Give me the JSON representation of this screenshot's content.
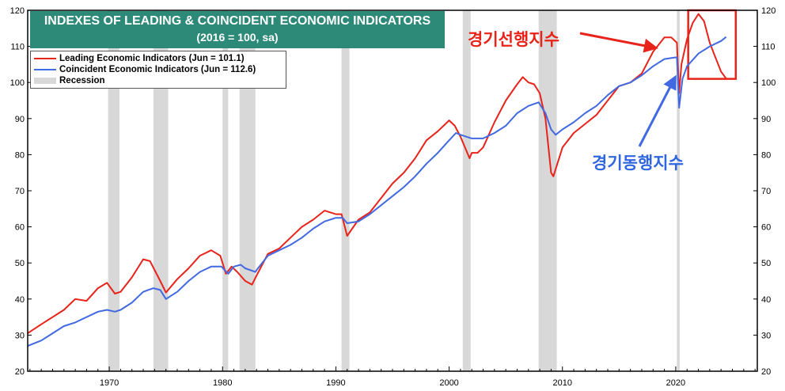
{
  "title": {
    "line1": "INDEXES OF LEADING & COINCIDENT ECONOMIC INDICATORS",
    "line2": "(2016 = 100, sa)"
  },
  "legend": {
    "leading": "Leading Economic Indicators (Jun = 101.1)",
    "coincident": "Coincident Economic Indicators (Jun = 112.6)",
    "recession": "Recession"
  },
  "annotations": {
    "leading_korean": "경기선행지수",
    "coincident_korean": "경기동행지수"
  },
  "colors": {
    "leading": "#e8231a",
    "coincident": "#4169e1",
    "recession": "#d8d8d8",
    "title_bg": "#2e8a78",
    "highlight_box": "#e8231a"
  },
  "chart_data": {
    "type": "line",
    "title": "INDEXES OF LEADING & COINCIDENT ECONOMIC INDICATORS (2016 = 100, sa)",
    "xlabel": "",
    "ylabel": "",
    "xlim": [
      1962.8,
      2027.2
    ],
    "ylim": [
      20,
      120
    ],
    "x_ticks": [
      1970,
      1980,
      1990,
      2000,
      2010,
      2020
    ],
    "y_ticks": [
      20,
      30,
      40,
      50,
      60,
      70,
      80,
      90,
      100,
      110,
      120
    ],
    "recessions": [
      [
        1969.9,
        1970.9
      ],
      [
        1973.9,
        1975.2
      ],
      [
        1980.0,
        1980.5
      ],
      [
        1981.5,
        1982.9
      ],
      [
        1990.5,
        1991.2
      ],
      [
        2001.2,
        2001.9
      ],
      [
        2007.9,
        2009.5
      ],
      [
        2020.1,
        2020.35
      ]
    ],
    "highlight_region": {
      "x": [
        2021.1,
        2025.3
      ],
      "y": [
        101,
        120
      ]
    },
    "series": [
      {
        "name": "Leading Economic Indicators (Jun = 101.1)",
        "color": "#e8231a",
        "points": [
          [
            1962.8,
            30.5
          ],
          [
            1964,
            33
          ],
          [
            1966,
            37
          ],
          [
            1967,
            40
          ],
          [
            1968,
            39.5
          ],
          [
            1969,
            43
          ],
          [
            1969.8,
            44.5
          ],
          [
            1970.5,
            41.5
          ],
          [
            1971,
            42
          ],
          [
            1972,
            46
          ],
          [
            1973,
            51
          ],
          [
            1973.6,
            50.5
          ],
          [
            1974.5,
            45
          ],
          [
            1975,
            41.8
          ],
          [
            1976,
            45.5
          ],
          [
            1977,
            48.5
          ],
          [
            1978,
            52
          ],
          [
            1979,
            53.5
          ],
          [
            1979.8,
            52
          ],
          [
            1980.3,
            47
          ],
          [
            1980.8,
            49
          ],
          [
            1981.3,
            47.5
          ],
          [
            1982,
            45
          ],
          [
            1982.6,
            44
          ],
          [
            1983,
            46.5
          ],
          [
            1984,
            52.5
          ],
          [
            1985,
            54
          ],
          [
            1986,
            57
          ],
          [
            1987,
            60
          ],
          [
            1988,
            62
          ],
          [
            1989,
            64.5
          ],
          [
            1990,
            63.5
          ],
          [
            1990.5,
            63.5
          ],
          [
            1991,
            57.5
          ],
          [
            1992,
            62
          ],
          [
            1993,
            64
          ],
          [
            1994,
            68
          ],
          [
            1995,
            72
          ],
          [
            1996,
            75
          ],
          [
            1997,
            79
          ],
          [
            1998,
            84
          ],
          [
            1999,
            86.5
          ],
          [
            2000,
            89.5
          ],
          [
            2000.5,
            88
          ],
          [
            2001,
            85
          ],
          [
            2001.8,
            79
          ],
          [
            2002,
            80.5
          ],
          [
            2002.5,
            80.5
          ],
          [
            2003,
            82
          ],
          [
            2004,
            89
          ],
          [
            2005,
            95
          ],
          [
            2006,
            99.5
          ],
          [
            2006.5,
            101.5
          ],
          [
            2007,
            100
          ],
          [
            2007.5,
            99.5
          ],
          [
            2008,
            97
          ],
          [
            2008.5,
            90
          ],
          [
            2009,
            75
          ],
          [
            2009.2,
            74
          ],
          [
            2010,
            82
          ],
          [
            2011,
            86
          ],
          [
            2012,
            88.5
          ],
          [
            2013,
            91
          ],
          [
            2014,
            95
          ],
          [
            2015,
            99
          ],
          [
            2016,
            100
          ],
          [
            2017,
            102.5
          ],
          [
            2018,
            108.5
          ],
          [
            2019,
            112.5
          ],
          [
            2019.6,
            112.5
          ],
          [
            2020.1,
            111
          ],
          [
            2020.3,
            97
          ],
          [
            2020.5,
            105
          ],
          [
            2021,
            112
          ],
          [
            2021.5,
            116.5
          ],
          [
            2022,
            119
          ],
          [
            2022.5,
            117
          ],
          [
            2023,
            111
          ],
          [
            2023.5,
            107
          ],
          [
            2024,
            103
          ],
          [
            2024.45,
            101.1
          ]
        ]
      },
      {
        "name": "Coincident Economic Indicators (Jun = 112.6)",
        "color": "#4169e1",
        "points": [
          [
            1962.8,
            27
          ],
          [
            1964,
            28.5
          ],
          [
            1965,
            30.5
          ],
          [
            1966,
            32.5
          ],
          [
            1967,
            33.5
          ],
          [
            1968,
            35
          ],
          [
            1969,
            36.5
          ],
          [
            1969.8,
            37
          ],
          [
            1970.5,
            36.5
          ],
          [
            1971,
            37
          ],
          [
            1972,
            39
          ],
          [
            1973,
            42
          ],
          [
            1973.9,
            43
          ],
          [
            1974.5,
            42.5
          ],
          [
            1975,
            40
          ],
          [
            1976,
            42
          ],
          [
            1977,
            45
          ],
          [
            1978,
            47.5
          ],
          [
            1979,
            49
          ],
          [
            1979.9,
            49
          ],
          [
            1980.5,
            47
          ],
          [
            1981,
            49
          ],
          [
            1981.6,
            49.5
          ],
          [
            1982,
            48.5
          ],
          [
            1982.9,
            47.5
          ],
          [
            1983,
            48
          ],
          [
            1984,
            52
          ],
          [
            1985,
            53.5
          ],
          [
            1986,
            55
          ],
          [
            1987,
            57
          ],
          [
            1988,
            59.5
          ],
          [
            1989,
            61.5
          ],
          [
            1990,
            62.5
          ],
          [
            1990.6,
            62.5
          ],
          [
            1991,
            61
          ],
          [
            1992,
            61.5
          ],
          [
            1993,
            63.5
          ],
          [
            1994,
            66
          ],
          [
            1995,
            68.5
          ],
          [
            1996,
            71
          ],
          [
            1997,
            74
          ],
          [
            1998,
            77.5
          ],
          [
            1999,
            80.5
          ],
          [
            2000,
            84
          ],
          [
            2000.6,
            86
          ],
          [
            2001,
            85.5
          ],
          [
            2002,
            84.5
          ],
          [
            2003,
            84.5
          ],
          [
            2004,
            86
          ],
          [
            2005,
            88
          ],
          [
            2006,
            91.5
          ],
          [
            2007,
            93.5
          ],
          [
            2007.9,
            94.5
          ],
          [
            2008.5,
            91.5
          ],
          [
            2009,
            87
          ],
          [
            2009.4,
            85.5
          ],
          [
            2010,
            87
          ],
          [
            2011,
            89
          ],
          [
            2012,
            91.5
          ],
          [
            2013,
            93.5
          ],
          [
            2014,
            96.5
          ],
          [
            2015,
            99
          ],
          [
            2016,
            100
          ],
          [
            2017,
            102
          ],
          [
            2018,
            104.5
          ],
          [
            2019,
            106.5
          ],
          [
            2020.1,
            107
          ],
          [
            2020.3,
            93
          ],
          [
            2020.6,
            101
          ],
          [
            2021,
            104.5
          ],
          [
            2022,
            108
          ],
          [
            2023,
            110
          ],
          [
            2024,
            111.5
          ],
          [
            2024.45,
            112.6
          ]
        ]
      }
    ]
  }
}
